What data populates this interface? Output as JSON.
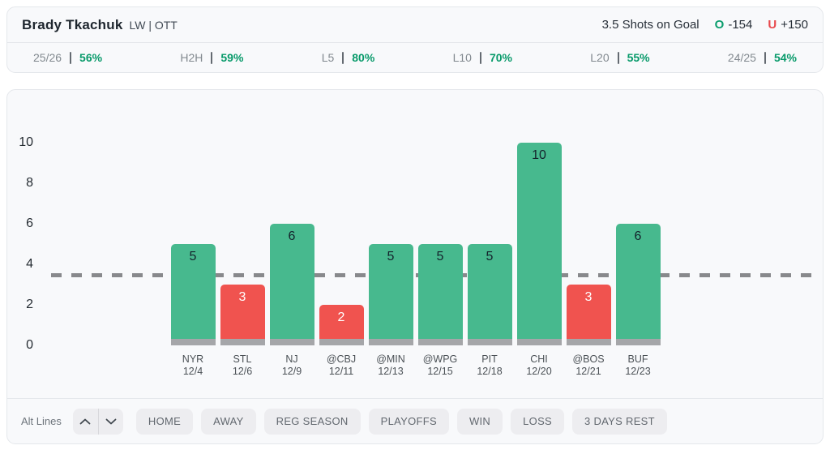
{
  "header": {
    "player_name": "Brady Tkachuk",
    "player_position": "LW | OTT",
    "prop_line_label": "3.5 Shots on Goal",
    "over_letter": "O",
    "over_odds": "-154",
    "under_letter": "U",
    "under_odds": "+150"
  },
  "stats": [
    {
      "label": "25/26",
      "value": "56%"
    },
    {
      "label": "H2H",
      "value": "59%"
    },
    {
      "label": "L5",
      "value": "80%"
    },
    {
      "label": "L10",
      "value": "70%"
    },
    {
      "label": "L20",
      "value": "55%"
    },
    {
      "label": "24/25",
      "value": "54%"
    }
  ],
  "chart_data": {
    "type": "bar",
    "categories": [
      "NYR",
      "STL",
      "NJ",
      "@CBJ",
      "@MIN",
      "@WPG",
      "PIT",
      "CHI",
      "@BOS",
      "BUF"
    ],
    "dates": [
      "12/4",
      "12/6",
      "12/9",
      "12/11",
      "12/13",
      "12/15",
      "12/18",
      "12/20",
      "12/21",
      "12/23"
    ],
    "values": [
      5,
      3,
      6,
      2,
      5,
      5,
      5,
      10,
      3,
      6
    ],
    "line_value": 3.5,
    "yticks": [
      0,
      2,
      4,
      6,
      8,
      10
    ],
    "ylim": [
      0,
      10.5
    ],
    "grid": false,
    "over_color": "#47b98e",
    "under_color": "#f0534f"
  },
  "toolbar": {
    "alt_lines_label": "Alt Lines",
    "filters": [
      "HOME",
      "AWAY",
      "REG SEASON",
      "PLAYOFFS",
      "WIN",
      "LOSS",
      "3 DAYS REST"
    ]
  },
  "colors": {
    "over_green": "#0c9e6e",
    "under_red": "#e8494d",
    "stat_green": "#089a6a",
    "card_bg": "#f8f9fb",
    "card_border": "#e4e7eb",
    "bar_base_gray": "#a5a6a9",
    "dash_gray": "#88898c"
  }
}
